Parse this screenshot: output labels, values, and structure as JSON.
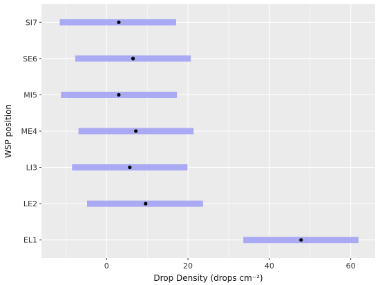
{
  "chart_data": {
    "type": "errorbar",
    "xlabel": "Drop Density (drops cm⁻²)",
    "ylabel": "WSP position",
    "xlim": [
      -16,
      66
    ],
    "xticks": [
      0,
      20,
      40,
      60
    ],
    "categories": [
      "SI7",
      "SE6",
      "MI5",
      "ME4",
      "LI3",
      "LE2",
      "EL1"
    ],
    "values": [
      3.0,
      6.5,
      3.0,
      7.2,
      5.7,
      9.6,
      47.8
    ],
    "lower": [
      -11.5,
      -7.7,
      -11.2,
      -6.9,
      -8.5,
      -4.8,
      33.6
    ],
    "upper": [
      17.1,
      20.7,
      17.3,
      21.4,
      19.9,
      23.7,
      61.9
    ],
    "grid": true,
    "bar_color": "#aaaaf4",
    "point_color": "#000000",
    "panel_background": "#ebebeb",
    "grid_color": "#ffffff"
  }
}
